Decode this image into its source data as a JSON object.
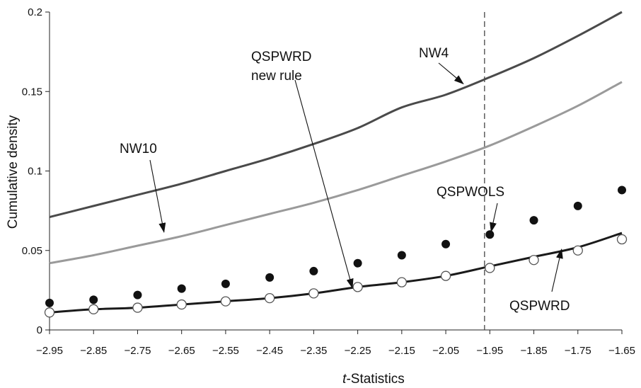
{
  "chart_data": {
    "type": "line",
    "xlabel_italic": "t",
    "xlabel_rest": "-Statistics",
    "ylabel": "Cumulative density",
    "xlim": [
      -2.95,
      -1.65
    ],
    "ylim": [
      0,
      0.2
    ],
    "xticks": [
      -2.95,
      -2.85,
      -2.75,
      -2.65,
      -2.55,
      -2.45,
      -2.35,
      -2.25,
      -2.15,
      -2.05,
      -1.95,
      -1.85,
      -1.75,
      -1.65
    ],
    "xtick_labels": [
      "−2.95",
      "−2.85",
      "−2.75",
      "−2.65",
      "−2.55",
      "−2.45",
      "−2.35",
      "−2.25",
      "−2.15",
      "−2.05",
      "−1.95",
      "−1.85",
      "−1.75",
      "−1.65"
    ],
    "yticks": [
      0,
      0.05,
      0.1,
      0.15,
      0.2
    ],
    "ytick_labels": [
      "0",
      "0.05",
      "0.1",
      "0.15",
      "0.2"
    ],
    "vline_x": -1.962,
    "grid": false,
    "series": [
      {
        "name": "NW4",
        "style": "line",
        "color": "#4a4a4a",
        "x": [
          -2.95,
          -2.85,
          -2.75,
          -2.65,
          -2.55,
          -2.45,
          -2.35,
          -2.25,
          -2.15,
          -2.05,
          -1.95,
          -1.85,
          -1.75,
          -1.65
        ],
        "y": [
          0.071,
          0.078,
          0.085,
          0.092,
          0.1,
          0.108,
          0.117,
          0.127,
          0.14,
          0.148,
          0.159,
          0.171,
          0.185,
          0.2
        ]
      },
      {
        "name": "NW10",
        "style": "line",
        "color": "#9a9a9a",
        "x": [
          -2.95,
          -2.85,
          -2.75,
          -2.65,
          -2.55,
          -2.45,
          -2.35,
          -2.25,
          -2.15,
          -2.05,
          -1.95,
          -1.85,
          -1.75,
          -1.65
        ],
        "y": [
          0.042,
          0.047,
          0.053,
          0.059,
          0.066,
          0.073,
          0.08,
          0.088,
          0.097,
          0.106,
          0.116,
          0.128,
          0.141,
          0.156
        ]
      },
      {
        "name": "QSPWRD new rule",
        "style": "line",
        "color": "#1a1a1a",
        "x": [
          -2.95,
          -2.85,
          -2.75,
          -2.65,
          -2.55,
          -2.45,
          -2.35,
          -2.25,
          -2.15,
          -2.05,
          -1.95,
          -1.85,
          -1.75,
          -1.65
        ],
        "y": [
          0.011,
          0.013,
          0.014,
          0.016,
          0.018,
          0.02,
          0.023,
          0.027,
          0.03,
          0.034,
          0.04,
          0.046,
          0.052,
          0.061
        ]
      },
      {
        "name": "QSPWOLS",
        "style": "filled-dots",
        "color": "#111111",
        "x": [
          -2.95,
          -2.85,
          -2.75,
          -2.65,
          -2.55,
          -2.45,
          -2.35,
          -2.25,
          -2.15,
          -2.05,
          -1.95,
          -1.85,
          -1.75,
          -1.65
        ],
        "y": [
          0.017,
          0.019,
          0.022,
          0.026,
          0.029,
          0.033,
          0.037,
          0.042,
          0.047,
          0.054,
          0.06,
          0.069,
          0.078,
          0.088
        ]
      },
      {
        "name": "QSPWRD",
        "style": "open-circles",
        "color": "#555555",
        "x": [
          -2.95,
          -2.85,
          -2.75,
          -2.65,
          -2.55,
          -2.45,
          -2.35,
          -2.25,
          -2.15,
          -2.05,
          -1.95,
          -1.85,
          -1.75,
          -1.65
        ],
        "y": [
          0.011,
          0.013,
          0.014,
          0.016,
          0.018,
          0.02,
          0.023,
          0.027,
          0.03,
          0.034,
          0.039,
          0.044,
          0.05,
          0.057
        ]
      }
    ],
    "annotations": [
      {
        "lines": [
          "NW4"
        ],
        "arrow_to": [
          -2.01,
          0.1548
        ]
      },
      {
        "lines": [
          "QSPWRD",
          "new rule"
        ],
        "arrow_to": [
          -2.262,
          0.0264
        ]
      },
      {
        "lines": [
          "NW10"
        ],
        "arrow_to": [
          -2.69,
          0.0615
        ]
      },
      {
        "lines": [
          "QSPWOLS"
        ],
        "arrow_to": [
          -1.947,
          0.0618
        ]
      },
      {
        "lines": [
          "QSPWRD"
        ],
        "arrow_to": [
          -1.787,
          0.0508
        ]
      }
    ]
  }
}
